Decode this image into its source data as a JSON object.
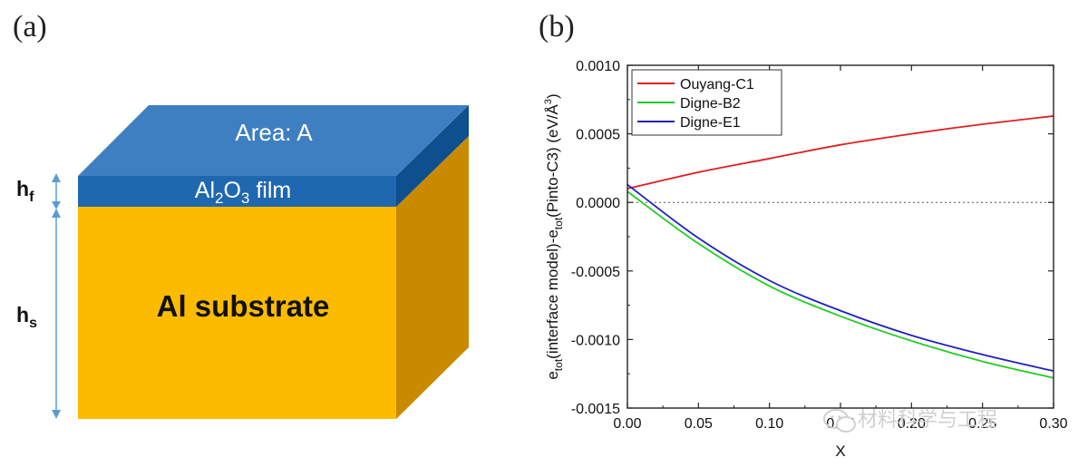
{
  "panels": {
    "a_label": "(a)",
    "b_label": "(b)"
  },
  "diagram": {
    "top_label": "Area: A",
    "film_label_prefix": "Al",
    "film_label_sub1": "2",
    "film_label_mid": "O",
    "film_label_sub2": "3",
    "film_label_suffix": " film",
    "substrate_label": "Al substrate",
    "hf_main": "h",
    "hf_sub": "f",
    "hs_main": "h",
    "hs_sub": "s",
    "colors": {
      "film_top": "#3e7fc1",
      "film_front": "#1f68b0",
      "film_side": "#0e4f8e",
      "substrate_front": "#fdbb00",
      "substrate_side": "#c98a00",
      "arrow": "#5b9bd5"
    }
  },
  "watermark": "材料科学与工程",
  "chart_data": {
    "type": "line",
    "title": "",
    "xlabel": "X",
    "ylabel_parts": [
      "e",
      "tot",
      "(interface model)-e",
      "tot",
      "(Pinto-C3) (eV/Å",
      "3",
      ")"
    ],
    "xlim": [
      0.0,
      0.3
    ],
    "ylim": [
      -0.0015,
      0.001
    ],
    "xticks": [
      "0.00",
      "0.05",
      "0.10",
      "0.15",
      "0.20",
      "0.25",
      "0.30"
    ],
    "yticks": [
      "0.0010",
      "0.0005",
      "0.0000",
      "-0.0005",
      "-0.0010",
      "-0.0015"
    ],
    "xtick_values": [
      0.0,
      0.05,
      0.1,
      0.15,
      0.2,
      0.25,
      0.3
    ],
    "ytick_values": [
      0.001,
      0.0005,
      0.0,
      -0.0005,
      -0.001,
      -0.0015
    ],
    "zero_line": "dotted",
    "legend_position": "top-left",
    "series": [
      {
        "name": "Ouyang-C1",
        "color": "#e02020",
        "x": [
          0.0,
          0.05,
          0.1,
          0.15,
          0.2,
          0.25,
          0.3
        ],
        "y": [
          0.0001,
          0.00022,
          0.00032,
          0.00042,
          0.0005,
          0.00057,
          0.00063
        ]
      },
      {
        "name": "Digne-B2",
        "color": "#22cc22",
        "x": [
          0.0,
          0.05,
          0.1,
          0.15,
          0.2,
          0.25,
          0.3
        ],
        "y": [
          8e-05,
          -0.0003,
          -0.00061,
          -0.00083,
          -0.00101,
          -0.00116,
          -0.00128
        ]
      },
      {
        "name": "Digne-E1",
        "color": "#2020c0",
        "x": [
          0.0,
          0.05,
          0.1,
          0.15,
          0.2,
          0.25,
          0.3
        ],
        "y": [
          0.00013,
          -0.00026,
          -0.00057,
          -0.00079,
          -0.00097,
          -0.00111,
          -0.00123
        ]
      }
    ]
  }
}
